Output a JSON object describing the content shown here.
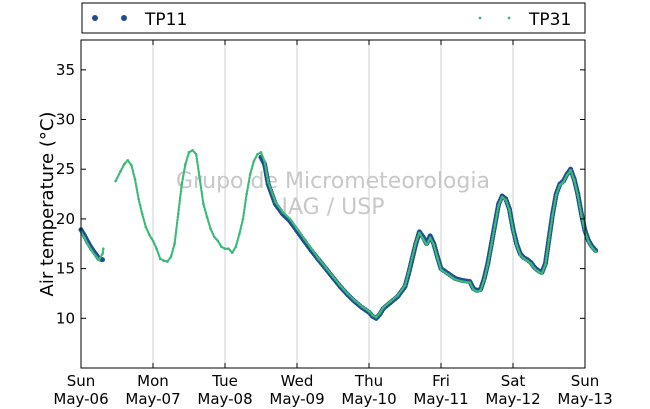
{
  "chart_data": {
    "type": "line",
    "ylabel": "Air temperature (°C)",
    "xlabel": "",
    "ylim": [
      5,
      38
    ],
    "yticks": [
      10,
      15,
      20,
      25,
      30,
      35
    ],
    "x_unit": "days since Sun May-06 00:00",
    "xticks": [
      {
        "day": "Sun",
        "date": "May-06"
      },
      {
        "day": "Mon",
        "date": "May-07"
      },
      {
        "day": "Tue",
        "date": "May-08"
      },
      {
        "day": "Wed",
        "date": "May-09"
      },
      {
        "day": "Thu",
        "date": "May-10"
      },
      {
        "day": "Fri",
        "date": "May-11"
      },
      {
        "day": "Sat",
        "date": "May-12"
      },
      {
        "day": "Sun",
        "date": "May-13"
      }
    ],
    "grid": "vertical",
    "legend_placement": "top, above plot",
    "watermark": [
      "Grupo de Micrometeorologia",
      "IAG / USP"
    ],
    "series": [
      {
        "name": "TP11",
        "marker": "dots",
        "color": "#1f4e8c",
        "segments": [
          [
            [
              0.0,
              18.9
            ],
            [
              0.05,
              18.3
            ],
            [
              0.1,
              17.6
            ],
            [
              0.15,
              17.0
            ],
            [
              0.2,
              16.5
            ],
            [
              0.25,
              16.0
            ],
            [
              0.3,
              15.9
            ]
          ],
          [
            [
              2.5,
              26.2
            ],
            [
              2.55,
              25.5
            ],
            [
              2.6,
              23.5
            ],
            [
              2.7,
              21.5
            ],
            [
              2.8,
              20.5
            ],
            [
              2.9,
              19.8
            ],
            [
              3.0,
              18.8
            ],
            [
              3.1,
              17.8
            ],
            [
              3.2,
              16.8
            ],
            [
              3.3,
              15.9
            ],
            [
              3.4,
              15.0
            ],
            [
              3.5,
              14.1
            ],
            [
              3.6,
              13.2
            ],
            [
              3.7,
              12.4
            ],
            [
              3.8,
              11.7
            ],
            [
              3.9,
              11.1
            ],
            [
              4.0,
              10.6
            ],
            [
              4.05,
              10.2
            ],
            [
              4.1,
              10.0
            ],
            [
              4.15,
              10.4
            ],
            [
              4.2,
              11.0
            ],
            [
              4.3,
              11.6
            ],
            [
              4.4,
              12.2
            ],
            [
              4.5,
              13.2
            ],
            [
              4.55,
              14.5
            ],
            [
              4.6,
              16.0
            ],
            [
              4.65,
              17.5
            ],
            [
              4.7,
              18.7
            ],
            [
              4.75,
              18.2
            ],
            [
              4.8,
              17.5
            ],
            [
              4.85,
              18.3
            ],
            [
              4.9,
              17.5
            ],
            [
              4.95,
              16.2
            ],
            [
              5.0,
              15.0
            ],
            [
              5.1,
              14.5
            ],
            [
              5.2,
              14.0
            ],
            [
              5.3,
              13.8
            ],
            [
              5.4,
              13.7
            ],
            [
              5.45,
              13.0
            ],
            [
              5.5,
              12.8
            ],
            [
              5.55,
              12.9
            ],
            [
              5.6,
              14.0
            ],
            [
              5.65,
              15.5
            ],
            [
              5.7,
              17.5
            ],
            [
              5.75,
              19.5
            ],
            [
              5.8,
              21.5
            ],
            [
              5.85,
              22.3
            ],
            [
              5.9,
              22.0
            ],
            [
              5.95,
              21.0
            ],
            [
              6.0,
              19.0
            ],
            [
              6.05,
              17.5
            ],
            [
              6.1,
              16.5
            ],
            [
              6.15,
              16.1
            ],
            [
              6.2,
              15.9
            ],
            [
              6.25,
              15.6
            ],
            [
              6.3,
              15.1
            ],
            [
              6.35,
              14.8
            ],
            [
              6.4,
              14.6
            ],
            [
              6.45,
              15.5
            ],
            [
              6.5,
              18.0
            ],
            [
              6.55,
              20.5
            ],
            [
              6.6,
              22.5
            ],
            [
              6.65,
              23.5
            ],
            [
              6.7,
              23.8
            ],
            [
              6.75,
              24.5
            ],
            [
              6.8,
              25.0
            ],
            [
              6.85,
              24.0
            ],
            [
              6.9,
              22.5
            ],
            [
              6.95,
              20.5
            ],
            [
              7.0,
              18.8
            ],
            [
              7.05,
              17.8
            ],
            [
              7.1,
              17.2
            ],
            [
              7.15,
              16.8
            ]
          ]
        ]
      },
      {
        "name": "TP31",
        "marker": "small dots",
        "color": "#3bba7a",
        "segments": [
          [
            [
              0.0,
              18.7
            ],
            [
              0.05,
              18.1
            ],
            [
              0.1,
              17.4
            ],
            [
              0.15,
              16.8
            ],
            [
              0.2,
              16.3
            ],
            [
              0.25,
              15.9
            ],
            [
              0.3,
              16.5
            ],
            [
              0.31,
              17.0
            ]
          ],
          [
            [
              0.48,
              23.8
            ],
            [
              0.55,
              24.8
            ],
            [
              0.6,
              25.5
            ],
            [
              0.65,
              25.9
            ],
            [
              0.7,
              25.4
            ],
            [
              0.75,
              24.0
            ],
            [
              0.8,
              22.0
            ],
            [
              0.85,
              20.5
            ],
            [
              0.9,
              19.2
            ],
            [
              0.95,
              18.4
            ],
            [
              1.0,
              17.8
            ],
            [
              1.05,
              17.0
            ],
            [
              1.1,
              16.0
            ],
            [
              1.15,
              15.8
            ],
            [
              1.2,
              15.7
            ],
            [
              1.25,
              16.2
            ],
            [
              1.3,
              17.5
            ],
            [
              1.35,
              20.5
            ],
            [
              1.4,
              23.5
            ],
            [
              1.45,
              25.5
            ],
            [
              1.5,
              26.7
            ],
            [
              1.55,
              26.9
            ],
            [
              1.6,
              26.5
            ],
            [
              1.65,
              24.0
            ],
            [
              1.7,
              21.5
            ],
            [
              1.75,
              20.2
            ],
            [
              1.8,
              19.0
            ],
            [
              1.85,
              18.2
            ],
            [
              1.9,
              17.8
            ],
            [
              1.95,
              17.2
            ],
            [
              2.0,
              17.0
            ],
            [
              2.05,
              17.0
            ],
            [
              2.1,
              16.6
            ],
            [
              2.15,
              17.2
            ],
            [
              2.2,
              18.5
            ],
            [
              2.25,
              20.0
            ],
            [
              2.3,
              22.5
            ],
            [
              2.35,
              24.5
            ],
            [
              2.4,
              25.8
            ],
            [
              2.45,
              26.5
            ],
            [
              2.5,
              26.7
            ],
            [
              2.55,
              25.8
            ],
            [
              2.6,
              23.7
            ],
            [
              2.7,
              21.7
            ],
            [
              2.8,
              20.7
            ],
            [
              2.9,
              20.0
            ],
            [
              3.0,
              19.0
            ],
            [
              3.1,
              18.0
            ],
            [
              3.2,
              17.0
            ],
            [
              3.3,
              16.0
            ],
            [
              3.4,
              15.1
            ],
            [
              3.5,
              14.2
            ],
            [
              3.6,
              13.3
            ],
            [
              3.7,
              12.5
            ],
            [
              3.8,
              11.8
            ],
            [
              3.9,
              11.2
            ],
            [
              4.0,
              10.7
            ],
            [
              4.05,
              10.3
            ],
            [
              4.1,
              10.1
            ],
            [
              4.15,
              10.5
            ],
            [
              4.2,
              11.1
            ],
            [
              4.3,
              11.7
            ],
            [
              4.4,
              12.3
            ],
            [
              4.5,
              13.3
            ],
            [
              4.55,
              14.6
            ],
            [
              4.6,
              16.1
            ],
            [
              4.65,
              17.6
            ],
            [
              4.7,
              18.6
            ],
            [
              4.75,
              18.0
            ],
            [
              4.8,
              17.4
            ],
            [
              4.85,
              18.1
            ],
            [
              4.9,
              17.4
            ],
            [
              4.95,
              16.1
            ],
            [
              5.0,
              14.9
            ],
            [
              5.1,
              14.4
            ],
            [
              5.2,
              13.9
            ],
            [
              5.3,
              13.7
            ],
            [
              5.4,
              13.6
            ],
            [
              5.45,
              12.9
            ],
            [
              5.5,
              12.7
            ],
            [
              5.55,
              12.8
            ],
            [
              5.6,
              13.9
            ],
            [
              5.65,
              15.4
            ],
            [
              5.7,
              17.4
            ],
            [
              5.75,
              19.4
            ],
            [
              5.8,
              21.4
            ],
            [
              5.85,
              22.2
            ],
            [
              5.9,
              21.9
            ],
            [
              5.95,
              20.9
            ],
            [
              6.0,
              18.9
            ],
            [
              6.05,
              17.4
            ],
            [
              6.1,
              16.4
            ],
            [
              6.15,
              16.0
            ],
            [
              6.2,
              15.8
            ],
            [
              6.25,
              15.5
            ],
            [
              6.3,
              15.0
            ],
            [
              6.35,
              14.7
            ],
            [
              6.4,
              14.5
            ],
            [
              6.45,
              15.4
            ],
            [
              6.5,
              17.9
            ],
            [
              6.55,
              20.4
            ],
            [
              6.6,
              22.4
            ],
            [
              6.65,
              23.4
            ],
            [
              6.7,
              23.7
            ],
            [
              6.75,
              24.4
            ],
            [
              6.8,
              24.9
            ],
            [
              6.85,
              23.9
            ],
            [
              6.9,
              22.4
            ],
            [
              6.95,
              20.4
            ],
            [
              7.0,
              18.7
            ],
            [
              7.05,
              17.7
            ],
            [
              7.1,
              17.1
            ],
            [
              7.15,
              16.7
            ]
          ]
        ]
      }
    ]
  }
}
